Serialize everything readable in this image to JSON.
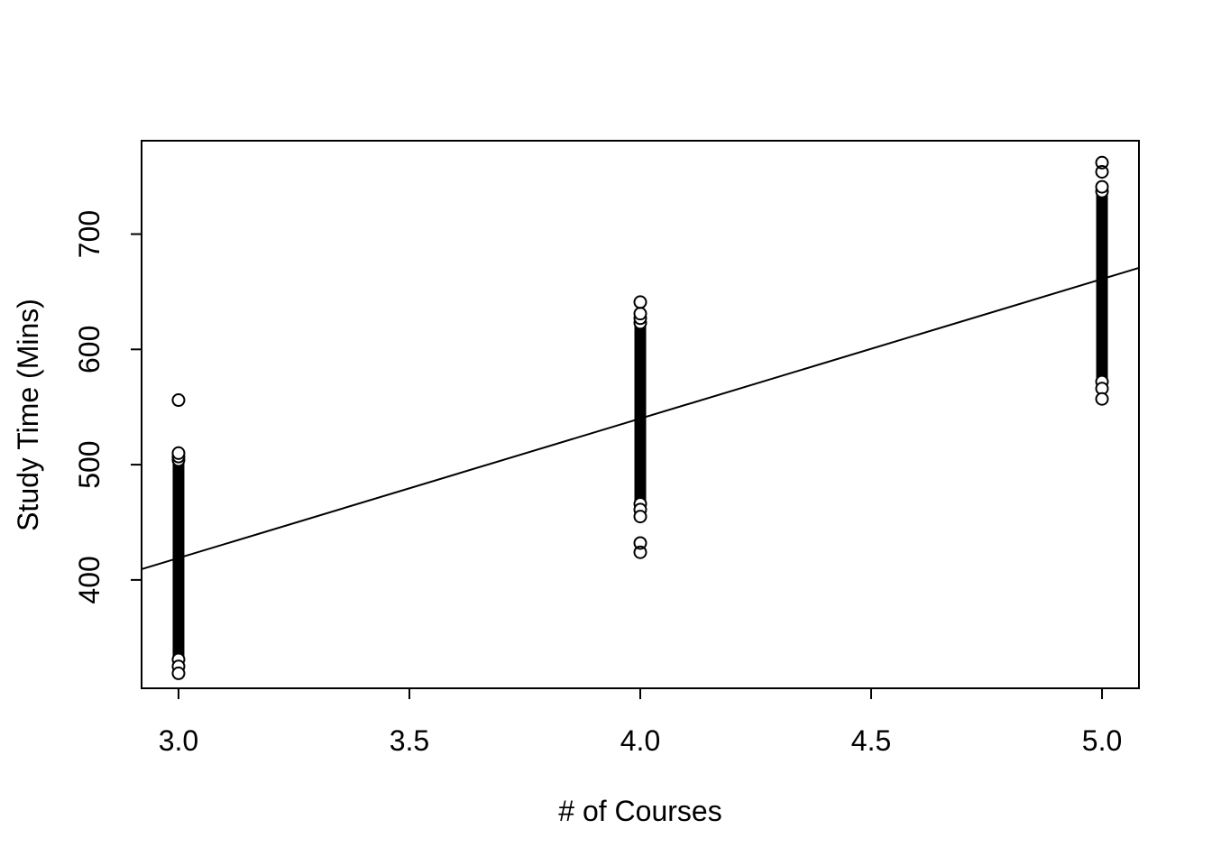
{
  "figure": {
    "background_color": "#ffffff",
    "foreground_color": "#000000"
  },
  "chart_data": {
    "type": "scatter",
    "title": "",
    "xlabel": "# of Courses",
    "ylabel": "Study Time (Mins)",
    "xlim": [
      2.92,
      5.08
    ],
    "ylim": [
      306,
      781
    ],
    "xtick_values": [
      3.0,
      3.5,
      4.0,
      4.5,
      5.0
    ],
    "xtick_labels": [
      "3.0",
      "3.5",
      "4.0",
      "4.5",
      "5.0"
    ],
    "ytick_values": [
      400,
      500,
      600,
      700
    ],
    "ytick_labels": [
      "400",
      "500",
      "600",
      "700"
    ],
    "grid": false,
    "legend": "none",
    "point_style": "open-circle",
    "point_color": "#000000",
    "clusters": [
      {
        "x": 3.0,
        "band_min": 319,
        "band_max": 510,
        "end_rings_top": [
          504,
          507,
          510
        ],
        "end_rings_bottom": [
          331,
          325,
          319
        ],
        "points": [
          556
        ]
      },
      {
        "x": 4.0,
        "band_min": 461,
        "band_max": 627,
        "end_rings_top": [
          623,
          627,
          631
        ],
        "end_rings_bottom": [
          466,
          461,
          455
        ],
        "points": [
          641,
          432,
          424
        ]
      },
      {
        "x": 5.0,
        "band_min": 566,
        "band_max": 741,
        "end_rings_top": [
          737,
          741
        ],
        "end_rings_bottom": [
          572,
          566,
          557
        ],
        "points": [
          754,
          762
        ]
      }
    ],
    "fit_line": {
      "slope": 121,
      "intercept": 56,
      "x_start": 2.92,
      "x_end": 5.08
    }
  }
}
